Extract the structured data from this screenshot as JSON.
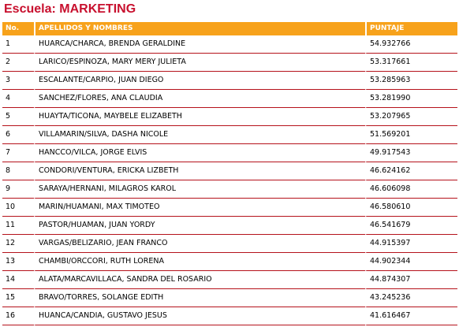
{
  "title": "Escuela: MARKETING",
  "colors": {
    "title": "#c8102e",
    "header_background": "#f7a21b",
    "header_text": "#ffffff",
    "row_separator": "#b5121b"
  },
  "table": {
    "headers": {
      "no": "No.",
      "name": "APELLIDOS Y NOMBRES",
      "score": "PUNTAJE"
    },
    "rows": [
      {
        "no": "1",
        "name": "HUARCA/CHARCA, BRENDA GERALDINE",
        "score": "54.932766"
      },
      {
        "no": "2",
        "name": "LARICO/ESPINOZA, MARY MERY JULIETA",
        "score": "53.317661"
      },
      {
        "no": "3",
        "name": "ESCALANTE/CARPIO, JUAN DIEGO",
        "score": "53.285963"
      },
      {
        "no": "4",
        "name": "SANCHEZ/FLORES, ANA CLAUDIA",
        "score": "53.281990"
      },
      {
        "no": "5",
        "name": "HUAYTA/TICONA, MAYBELE ELIZABETH",
        "score": "53.207965"
      },
      {
        "no": "6",
        "name": "VILLAMARIN/SILVA, DASHA NICOLE",
        "score": "51.569201"
      },
      {
        "no": "7",
        "name": "HANCCO/VILCA, JORGE ELVIS",
        "score": "49.917543"
      },
      {
        "no": "8",
        "name": "CONDORI/VENTURA, ERICKA LIZBETH",
        "score": "46.624162"
      },
      {
        "no": "9",
        "name": "SARAYA/HERNANI, MILAGROS KAROL",
        "score": "46.606098"
      },
      {
        "no": "10",
        "name": "MARIN/HUAMANI, MAX TIMOTEO",
        "score": "46.580610"
      },
      {
        "no": "11",
        "name": "PASTOR/HUAMAN, JUAN YORDY",
        "score": "46.541679"
      },
      {
        "no": "12",
        "name": "VARGAS/BELIZARIO, JEAN FRANCO",
        "score": "44.915397"
      },
      {
        "no": "13",
        "name": "CHAMBI/ORCCORI, RUTH LORENA",
        "score": "44.902344"
      },
      {
        "no": "14",
        "name": "ALATA/MARCAVILLACA, SANDRA DEL ROSARIO",
        "score": "44.874307"
      },
      {
        "no": "15",
        "name": "BRAVO/TORRES, SOLANGE EDITH",
        "score": "43.245236"
      },
      {
        "no": "16",
        "name": "HUANCA/CANDIA, GUSTAVO JESUS",
        "score": "41.616467"
      }
    ]
  }
}
